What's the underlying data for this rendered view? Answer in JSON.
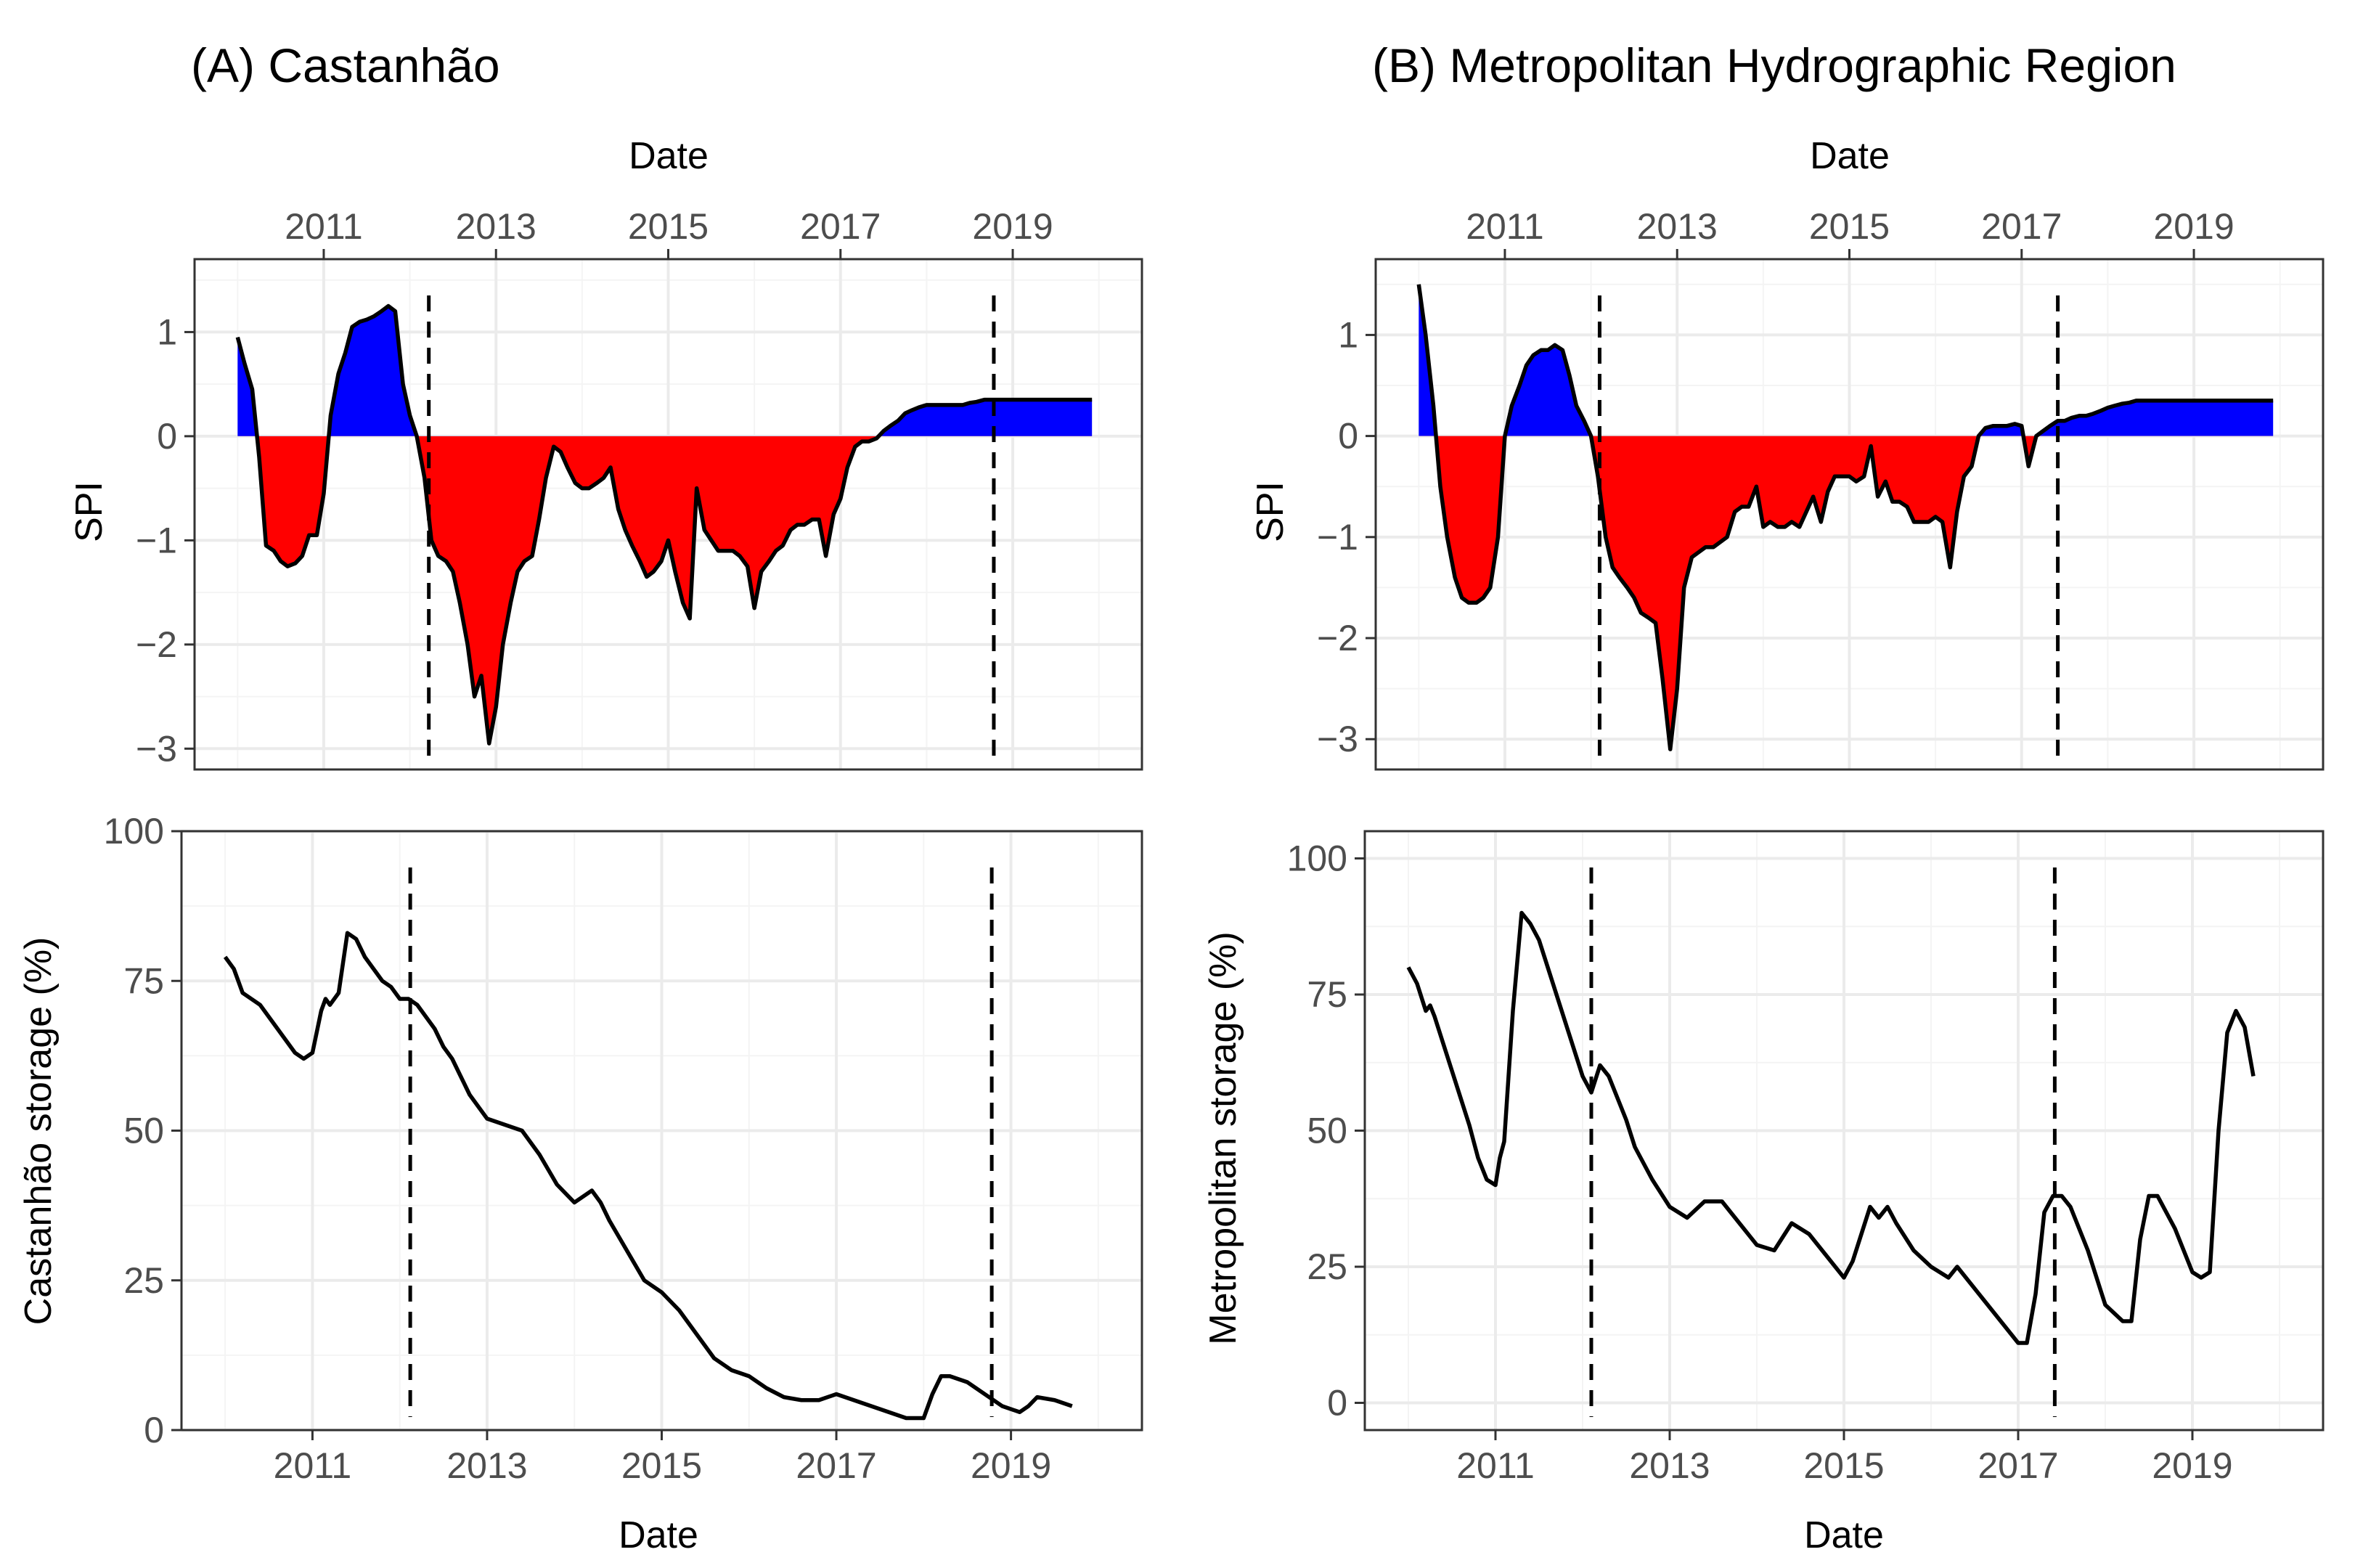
{
  "chart_data": [
    {
      "type": "area",
      "panel": "A-top",
      "title": "(A) Castanhão",
      "xlabel": "Date",
      "xlabel_position": "top",
      "ylabel": "SPI",
      "xlim": [
        2009.5,
        2020.5
      ],
      "ylim": [
        -3.2,
        1.7
      ],
      "x_ticks": [
        2011,
        2013,
        2015,
        2017,
        2019
      ],
      "y_ticks": [
        1,
        0,
        -1,
        -2,
        -3
      ],
      "y_tick_labels": [
        "1",
        "0",
        "−1",
        "−2",
        "−3"
      ],
      "positive_color": "#0000ff",
      "negative_color": "#ff0000",
      "vlines": [
        2012.22,
        2018.78
      ],
      "series": [
        {
          "name": "SPI",
          "x": [
            2010.0,
            2010.08,
            2010.17,
            2010.25,
            2010.33,
            2010.42,
            2010.5,
            2010.58,
            2010.67,
            2010.75,
            2010.83,
            2010.92,
            2011.0,
            2011.08,
            2011.17,
            2011.25,
            2011.33,
            2011.42,
            2011.5,
            2011.58,
            2011.67,
            2011.75,
            2011.83,
            2011.92,
            2012.0,
            2012.08,
            2012.17,
            2012.25,
            2012.33,
            2012.42,
            2012.5,
            2012.58,
            2012.67,
            2012.75,
            2012.83,
            2012.92,
            2013.0,
            2013.08,
            2013.17,
            2013.25,
            2013.33,
            2013.42,
            2013.5,
            2013.58,
            2013.67,
            2013.75,
            2013.83,
            2013.92,
            2014.0,
            2014.08,
            2014.17,
            2014.25,
            2014.33,
            2014.42,
            2014.5,
            2014.58,
            2014.67,
            2014.75,
            2014.83,
            2014.92,
            2015.0,
            2015.08,
            2015.17,
            2015.25,
            2015.33,
            2015.42,
            2015.5,
            2015.58,
            2015.67,
            2015.75,
            2015.83,
            2015.92,
            2016.0,
            2016.08,
            2016.17,
            2016.25,
            2016.33,
            2016.42,
            2016.5,
            2016.58,
            2016.67,
            2016.75,
            2016.83,
            2016.92,
            2017.0,
            2017.08,
            2017.17,
            2017.25,
            2017.33,
            2017.42,
            2017.5,
            2017.58,
            2017.67,
            2017.75,
            2017.83,
            2017.92,
            2018.0,
            2018.08,
            2018.17,
            2018.25,
            2018.33,
            2018.42,
            2018.5,
            2018.58,
            2018.67,
            2018.75,
            2018.83,
            2018.92,
            2019.0,
            2019.08,
            2019.17,
            2019.25,
            2019.33,
            2019.42,
            2019.5,
            2019.58,
            2019.67,
            2019.75,
            2019.83,
            2019.92
          ],
          "values": [
            0.95,
            0.7,
            0.45,
            -0.2,
            -1.05,
            -1.1,
            -1.2,
            -1.25,
            -1.22,
            -1.15,
            -0.95,
            -0.95,
            -0.55,
            0.2,
            0.6,
            0.8,
            1.05,
            1.1,
            1.12,
            1.15,
            1.2,
            1.25,
            1.2,
            0.5,
            0.2,
            0.0,
            -0.4,
            -1.0,
            -1.15,
            -1.2,
            -1.3,
            -1.6,
            -2.0,
            -2.5,
            -2.3,
            -2.95,
            -2.6,
            -2.0,
            -1.6,
            -1.3,
            -1.2,
            -1.15,
            -0.8,
            -0.4,
            -0.1,
            -0.15,
            -0.3,
            -0.45,
            -0.5,
            -0.5,
            -0.45,
            -0.4,
            -0.3,
            -0.7,
            -0.9,
            -1.05,
            -1.2,
            -1.35,
            -1.3,
            -1.2,
            -1.0,
            -1.3,
            -1.6,
            -1.75,
            -0.5,
            -0.9,
            -1.0,
            -1.1,
            -1.1,
            -1.1,
            -1.15,
            -1.25,
            -1.65,
            -1.3,
            -1.2,
            -1.1,
            -1.05,
            -0.9,
            -0.85,
            -0.85,
            -0.8,
            -0.8,
            -1.15,
            -0.75,
            -0.6,
            -0.3,
            -0.1,
            -0.05,
            -0.05,
            -0.02,
            0.05,
            0.1,
            0.15,
            0.22,
            0.25,
            0.28,
            0.3,
            0.3,
            0.3,
            0.3,
            0.3,
            0.3,
            0.32,
            0.33,
            0.35,
            0.35,
            0.35,
            0.35,
            0.35,
            0.35,
            0.35,
            0.35,
            0.35,
            0.35,
            0.35,
            0.35,
            0.35,
            0.35,
            0.35,
            0.35
          ]
        }
      ]
    },
    {
      "type": "area",
      "panel": "B-top",
      "title": "(B) Metropolitan Hydrographic Region",
      "xlabel": "Date",
      "xlabel_position": "top",
      "ylabel": "SPI",
      "xlim": [
        2009.5,
        2020.5
      ],
      "ylim": [
        -3.3,
        1.75
      ],
      "x_ticks": [
        2011,
        2013,
        2015,
        2017,
        2019
      ],
      "y_ticks": [
        1,
        0,
        -1,
        -2,
        -3
      ],
      "y_tick_labels": [
        "1",
        "0",
        "−1",
        "−2",
        "−3"
      ],
      "positive_color": "#0000ff",
      "negative_color": "#ff0000",
      "vlines": [
        2012.1,
        2017.42
      ],
      "series": [
        {
          "name": "SPI",
          "x": [
            2010.0,
            2010.08,
            2010.17,
            2010.25,
            2010.33,
            2010.42,
            2010.5,
            2010.58,
            2010.67,
            2010.75,
            2010.83,
            2010.92,
            2011.0,
            2011.08,
            2011.17,
            2011.25,
            2011.33,
            2011.42,
            2011.5,
            2011.58,
            2011.67,
            2011.75,
            2011.83,
            2011.92,
            2012.0,
            2012.08,
            2012.17,
            2012.25,
            2012.33,
            2012.42,
            2012.5,
            2012.58,
            2012.67,
            2012.75,
            2012.83,
            2012.92,
            2013.0,
            2013.08,
            2013.17,
            2013.25,
            2013.33,
            2013.42,
            2013.5,
            2013.58,
            2013.67,
            2013.75,
            2013.83,
            2013.92,
            2014.0,
            2014.08,
            2014.17,
            2014.25,
            2014.33,
            2014.42,
            2014.5,
            2014.58,
            2014.67,
            2014.75,
            2014.83,
            2014.92,
            2015.0,
            2015.08,
            2015.17,
            2015.25,
            2015.33,
            2015.42,
            2015.5,
            2015.58,
            2015.67,
            2015.75,
            2015.83,
            2015.92,
            2016.0,
            2016.08,
            2016.17,
            2016.25,
            2016.33,
            2016.42,
            2016.5,
            2016.58,
            2016.67,
            2016.75,
            2016.83,
            2016.92,
            2017.0,
            2017.08,
            2017.17,
            2017.25,
            2017.33,
            2017.42,
            2017.5,
            2017.58,
            2017.67,
            2017.75,
            2017.83,
            2017.92,
            2018.0,
            2018.08,
            2018.17,
            2018.25,
            2018.33,
            2018.42,
            2018.5,
            2018.58,
            2018.67,
            2018.75,
            2018.83,
            2018.92,
            2019.0,
            2019.08,
            2019.17,
            2019.25,
            2019.33,
            2019.42,
            2019.5,
            2019.58,
            2019.67,
            2019.75,
            2019.83,
            2019.92
          ],
          "values": [
            1.5,
            1.0,
            0.3,
            -0.5,
            -1.0,
            -1.4,
            -1.6,
            -1.65,
            -1.65,
            -1.6,
            -1.5,
            -1.0,
            0.0,
            0.3,
            0.5,
            0.7,
            0.8,
            0.85,
            0.85,
            0.9,
            0.85,
            0.6,
            0.3,
            0.15,
            0.0,
            -0.4,
            -1.0,
            -1.3,
            -1.4,
            -1.5,
            -1.6,
            -1.75,
            -1.8,
            -1.85,
            -2.4,
            -3.1,
            -2.5,
            -1.5,
            -1.2,
            -1.15,
            -1.1,
            -1.1,
            -1.05,
            -1.0,
            -0.75,
            -0.7,
            -0.7,
            -0.5,
            -0.9,
            -0.85,
            -0.9,
            -0.9,
            -0.85,
            -0.9,
            -0.75,
            -0.6,
            -0.85,
            -0.55,
            -0.4,
            -0.4,
            -0.4,
            -0.45,
            -0.4,
            -0.1,
            -0.6,
            -0.45,
            -0.65,
            -0.65,
            -0.7,
            -0.85,
            -0.85,
            -0.85,
            -0.8,
            -0.85,
            -1.3,
            -0.75,
            -0.4,
            -0.3,
            0.0,
            0.08,
            0.1,
            0.1,
            0.1,
            0.12,
            0.1,
            -0.3,
            0.0,
            0.05,
            0.1,
            0.15,
            0.15,
            0.18,
            0.2,
            0.2,
            0.22,
            0.25,
            0.28,
            0.3,
            0.32,
            0.33,
            0.35,
            0.35,
            0.35,
            0.35,
            0.35,
            0.35,
            0.35,
            0.35,
            0.35,
            0.35,
            0.35,
            0.35,
            0.35,
            0.35,
            0.35,
            0.35,
            0.35,
            0.35,
            0.35,
            0.35
          ]
        }
      ]
    },
    {
      "type": "line",
      "panel": "A-bottom",
      "xlabel": "Date",
      "ylabel": "Castanhão storage (%)",
      "xlim": [
        2009.5,
        2020.5
      ],
      "ylim": [
        0,
        100
      ],
      "x_ticks": [
        2011,
        2013,
        2015,
        2017,
        2019
      ],
      "y_ticks": [
        0,
        25,
        50,
        75,
        100
      ],
      "vlines": [
        2012.12,
        2018.78
      ],
      "series": [
        {
          "name": "Castanhão storage",
          "x": [
            2010.0,
            2010.1,
            2010.2,
            2010.3,
            2010.4,
            2010.5,
            2010.6,
            2010.7,
            2010.8,
            2010.9,
            2011.0,
            2011.1,
            2011.15,
            2011.2,
            2011.3,
            2011.35,
            2011.4,
            2011.5,
            2011.6,
            2011.7,
            2011.8,
            2011.9,
            2012.0,
            2012.1,
            2012.2,
            2012.3,
            2012.4,
            2012.5,
            2012.6,
            2012.7,
            2012.8,
            2012.9,
            2013.0,
            2013.2,
            2013.4,
            2013.6,
            2013.8,
            2014.0,
            2014.2,
            2014.3,
            2014.4,
            2014.6,
            2014.8,
            2015.0,
            2015.2,
            2015.4,
            2015.6,
            2015.8,
            2016.0,
            2016.2,
            2016.4,
            2016.6,
            2016.8,
            2017.0,
            2017.2,
            2017.4,
            2017.6,
            2017.8,
            2018.0,
            2018.1,
            2018.2,
            2018.3,
            2018.5,
            2018.7,
            2018.9,
            2019.1,
            2019.2,
            2019.3,
            2019.5,
            2019.7
          ],
          "values": [
            79,
            77,
            73,
            72,
            71,
            69,
            67,
            65,
            63,
            62,
            63,
            70,
            72,
            71,
            73,
            78,
            83,
            82,
            79,
            77,
            75,
            74,
            72,
            72,
            71,
            69,
            67,
            64,
            62,
            59,
            56,
            54,
            52,
            51,
            50,
            46,
            41,
            38,
            40,
            38,
            35,
            30,
            25,
            23,
            20,
            16,
            12,
            10,
            9,
            7,
            5.5,
            5,
            5,
            6,
            5,
            4,
            3,
            2,
            2,
            6,
            9,
            9,
            8,
            6,
            4,
            3,
            4,
            5.5,
            5,
            4
          ]
        }
      ]
    },
    {
      "type": "line",
      "panel": "B-bottom",
      "xlabel": "Date",
      "ylabel": "Metropolitan storage (%)",
      "xlim": [
        2009.5,
        2020.5
      ],
      "ylim": [
        -5,
        105
      ],
      "x_ticks": [
        2011,
        2013,
        2015,
        2017,
        2019
      ],
      "y_ticks": [
        0,
        25,
        50,
        75,
        100
      ],
      "vlines": [
        2012.1,
        2017.42
      ],
      "series": [
        {
          "name": "Metropolitan storage",
          "x": [
            2010.0,
            2010.1,
            2010.2,
            2010.25,
            2010.3,
            2010.4,
            2010.5,
            2010.6,
            2010.7,
            2010.8,
            2010.9,
            2011.0,
            2011.05,
            2011.1,
            2011.2,
            2011.3,
            2011.4,
            2011.5,
            2011.6,
            2011.7,
            2011.8,
            2011.9,
            2012.0,
            2012.1,
            2012.2,
            2012.3,
            2012.4,
            2012.5,
            2012.6,
            2012.8,
            2013.0,
            2013.2,
            2013.4,
            2013.6,
            2013.8,
            2014.0,
            2014.2,
            2014.4,
            2014.6,
            2014.8,
            2015.0,
            2015.1,
            2015.3,
            2015.4,
            2015.5,
            2015.6,
            2015.8,
            2016.0,
            2016.2,
            2016.3,
            2016.4,
            2016.6,
            2016.8,
            2017.0,
            2017.1,
            2017.2,
            2017.3,
            2017.4,
            2017.5,
            2017.6,
            2017.8,
            2018.0,
            2018.2,
            2018.3,
            2018.4,
            2018.5,
            2018.6,
            2018.8,
            2019.0,
            2019.1,
            2019.2,
            2019.3,
            2019.4,
            2019.5,
            2019.6,
            2019.7
          ],
          "values": [
            80,
            77,
            72,
            73,
            71,
            66,
            61,
            56,
            51,
            45,
            41,
            40,
            45,
            48,
            72,
            90,
            88,
            85,
            80,
            75,
            70,
            65,
            60,
            57,
            62,
            60,
            56,
            52,
            47,
            41,
            36,
            34,
            37,
            37,
            33,
            29,
            28,
            33,
            31,
            27,
            23,
            26,
            36,
            34,
            36,
            33,
            28,
            25,
            23,
            25,
            23,
            19,
            15,
            11,
            11,
            20,
            35,
            38,
            38,
            36,
            28,
            18,
            15,
            15,
            30,
            38,
            38,
            32,
            24,
            23,
            24,
            50,
            68,
            72,
            69,
            60
          ]
        }
      ]
    }
  ]
}
